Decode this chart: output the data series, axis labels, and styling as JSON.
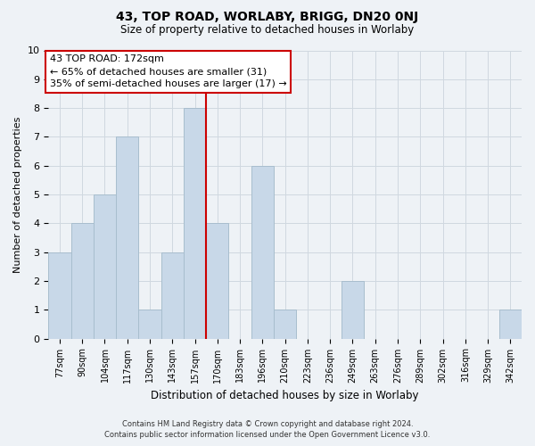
{
  "title": "43, TOP ROAD, WORLABY, BRIGG, DN20 0NJ",
  "subtitle": "Size of property relative to detached houses in Worlaby",
  "xlabel": "Distribution of detached houses by size in Worlaby",
  "ylabel": "Number of detached properties",
  "footnote1": "Contains HM Land Registry data © Crown copyright and database right 2024.",
  "footnote2": "Contains public sector information licensed under the Open Government Licence v3.0.",
  "bin_labels": [
    "77sqm",
    "90sqm",
    "104sqm",
    "117sqm",
    "130sqm",
    "143sqm",
    "157sqm",
    "170sqm",
    "183sqm",
    "196sqm",
    "210sqm",
    "223sqm",
    "236sqm",
    "249sqm",
    "263sqm",
    "276sqm",
    "289sqm",
    "302sqm",
    "316sqm",
    "329sqm",
    "342sqm"
  ],
  "bar_heights": [
    3,
    4,
    5,
    7,
    1,
    3,
    8,
    4,
    0,
    6,
    1,
    0,
    0,
    2,
    0,
    0,
    0,
    0,
    0,
    0,
    1
  ],
  "bar_color": "#c8d8e8",
  "bar_edgecolor": "#a8bece",
  "reference_line_x": 7.5,
  "annotation_title": "43 TOP ROAD: 172sqm",
  "annotation_line1": "← 65% of detached houses are smaller (31)",
  "annotation_line2": "35% of semi-detached houses are larger (17) →",
  "annotation_box_color": "#ffffff",
  "annotation_box_edgecolor": "#cc0000",
  "ylim": [
    0,
    10
  ],
  "grid_color": "#d0d8e0",
  "background_color": "#eef2f6"
}
